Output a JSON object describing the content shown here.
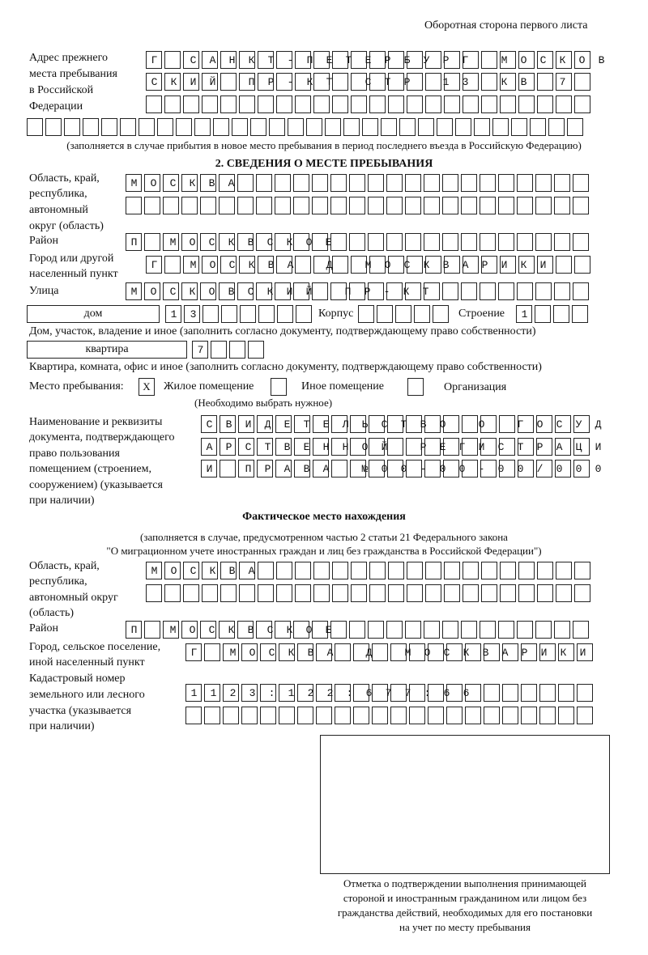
{
  "header": {
    "side_note": "Оборотная сторона первого листа"
  },
  "prev_address": {
    "label": [
      "Адрес прежнего",
      "места пребывания",
      "в Российской",
      "Федерации"
    ],
    "rows": [
      "Г САНКТ-ПЕТЕРБУРГ МОСКОВ",
      "СКИЙ ПР-КТ СТР 13 КВ 7  ",
      "                        ",
      "                              "
    ],
    "note": "(заполняется в случае прибытия в новое место пребывания в период последнего въезда в Российскую Федерацию)"
  },
  "section2": {
    "title": "2. СВЕДЕНИЯ О МЕСТЕ ПРЕБЫВАНИЯ",
    "region_label": [
      "Область, край,",
      "республика,",
      "автономный",
      "округ (область)"
    ],
    "region_rows": [
      "МОСКВА                   ",
      "                         "
    ],
    "district_label": "Район",
    "district_row": "П МОСКВСКОЕ              ",
    "city_label": [
      "Город или другой",
      "населенный пункт"
    ],
    "city_row": "Г МОСКВА Д МОСКВАРИКИ   ",
    "street_label": "Улица",
    "street_row": "МОСКОВСКИЙ ПР-КТ         ",
    "house_type": "дом",
    "house_row": "13      ",
    "korpus_label": "Корпус",
    "korpus_row": "     ",
    "building_label": "Строение",
    "building_row": "1   ",
    "house_note": "Дом, участок, владение и иное (заполнить согласно документу, подтверждающему право собственности)",
    "flat_type": "квартира",
    "flat_row": "7   ",
    "flat_note": "Квартира, комната, офис и иное (заполнить согласно документу, подтверждающему право собственности)",
    "stay_label": "Место пребывания:",
    "stay_options": [
      {
        "mark": "X",
        "label": "Жилое помещение"
      },
      {
        "mark": "",
        "label": "Иное помещение"
      },
      {
        "mark": "",
        "label": "Организация"
      }
    ],
    "stay_note": "(Необходимо выбрать нужное)",
    "doc_label": [
      "Наименование и реквизиты",
      "документа, подтверждающего",
      "право пользования",
      "помещением (строением,",
      "сооружением) (указывается",
      "при наличии)"
    ],
    "doc_rows": [
      "СВИДЕТЕЛЬСТВО О ГОСУД",
      "АРСТВЕННОЙ РЕГИСТРАЦИ",
      "И ПРАВА №00-00-00/000"
    ]
  },
  "actual": {
    "title": "Фактическое место нахождения",
    "note": [
      "(заполняется в случае, предусмотренном частью 2 статьи 21 Федерального закона",
      "\"О миграционном учете иностранных граждан и лиц без гражданства в Российской Федерации\")"
    ],
    "region_label": [
      "Область, край,",
      "республика,",
      "автономный округ",
      "(область)"
    ],
    "region_rows": [
      "МОСКВА                  ",
      "                        "
    ],
    "district_label": "Район",
    "district_row": "П МОСКВСКОЕ              ",
    "city_label": [
      "Город, сельское поселение,",
      "иной населенный пункт"
    ],
    "city_row": "Г МОСКВА Д МОСКВАРИКИ ",
    "cadastral_label": [
      "Кадастровый номер",
      "земельного или лесного",
      "участка (указывается",
      "при наличии)"
    ],
    "cadastral_rows": [
      "1123:122:677:66       ",
      "                      "
    ]
  },
  "stamp": {
    "caption": [
      "Отметка о подтверждении выполнения принимающей",
      "стороной и иностранным гражданином или лицом без",
      "гражданства действий, необходимых для его постановки",
      "на учет по месту пребывания"
    ]
  }
}
